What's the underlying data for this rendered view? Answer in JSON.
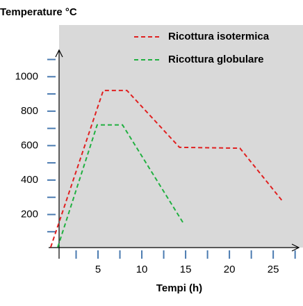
{
  "chart_data": {
    "type": "line",
    "title": "Temperature °C",
    "x_label": "Tempi (h)",
    "xlim": [
      0,
      28.4
    ],
    "xticks": [
      5,
      10,
      15,
      20,
      25
    ],
    "ylim": [
      0,
      1300
    ],
    "yticks": [
      200,
      400,
      600,
      800,
      1000
    ],
    "legend": "top-right",
    "background": "#d9d9d9",
    "series": [
      {
        "name": "Ricottura isotermica",
        "color": "#e02020",
        "x": [
          -0.4,
          5.6,
          8.3,
          14.3,
          21.2,
          26.1
        ],
        "values": [
          10,
          920,
          920,
          590,
          585,
          275
        ]
      },
      {
        "name": "Ricottura globulare",
        "color": "#20b040",
        "x": [
          0.4,
          4.9,
          7.8,
          14.8
        ],
        "values": [
          10,
          720,
          720,
          145
        ]
      }
    ]
  }
}
